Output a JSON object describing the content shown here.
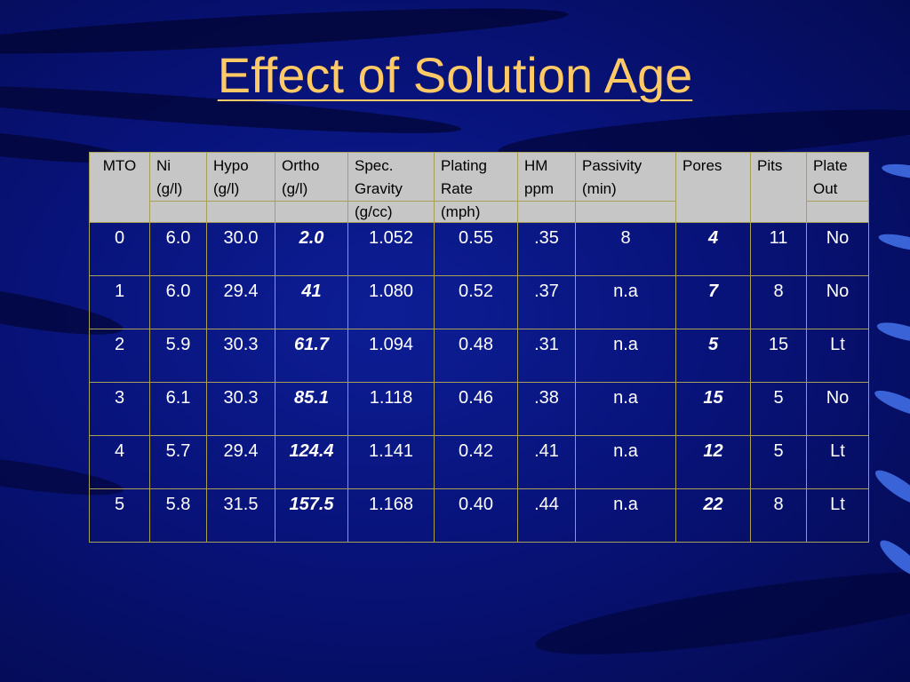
{
  "title": "Effect of Solution Age",
  "table": {
    "headers": [
      {
        "line1": "MTO",
        "line2": "",
        "line3": ""
      },
      {
        "line1": "Ni",
        "line2": "(g/l)",
        "line3": ""
      },
      {
        "line1": "Hypo",
        "line2": "(g/l)",
        "line3": ""
      },
      {
        "line1": "Ortho",
        "line2": "(g/l)",
        "line3": ""
      },
      {
        "line1": "Spec.",
        "line2": "Gravity",
        "line3": "(g/cc)"
      },
      {
        "line1": "Plating",
        "line2": "Rate",
        "line3": "(mph)"
      },
      {
        "line1": "HM",
        "line2": "ppm",
        "line3": ""
      },
      {
        "line1": "Passivity",
        "line2": "(min)",
        "line3": ""
      },
      {
        "line1": "Pores",
        "line2": "",
        "line3": ""
      },
      {
        "line1": "Pits",
        "line2": "",
        "line3": ""
      },
      {
        "line1": "Plate",
        "line2": "Out",
        "line3": ""
      }
    ],
    "rows": [
      [
        "0",
        "6.0",
        "30.0",
        "2.0",
        "1.052",
        "0.55",
        ".35",
        "8",
        "4",
        "11",
        "No"
      ],
      [
        "1",
        "6.0",
        "29.4",
        "41",
        "1.080",
        "0.52",
        ".37",
        "n.a",
        "7",
        "8",
        "No"
      ],
      [
        "2",
        "5.9",
        "30.3",
        "61.7",
        "1.094",
        "0.48",
        ".31",
        "n.a",
        "5",
        "15",
        "Lt"
      ],
      [
        "3",
        "6.1",
        "30.3",
        "85.1",
        "1.118",
        "0.46",
        ".38",
        "n.a",
        "15",
        "5",
        "No"
      ],
      [
        "4",
        "5.7",
        "29.4",
        "124.4",
        "1.141",
        "0.42",
        ".41",
        "n.a",
        "12",
        "5",
        "Lt"
      ],
      [
        "5",
        "5.8",
        "31.5",
        "157.5",
        "1.168",
        "0.40",
        ".44",
        "n.a",
        "22",
        "8",
        "Lt"
      ]
    ]
  },
  "colors": {
    "title": "#ffc965",
    "header_bg": "#c6c6c6",
    "cell_border": "#a8a055",
    "background": "#08137a"
  }
}
